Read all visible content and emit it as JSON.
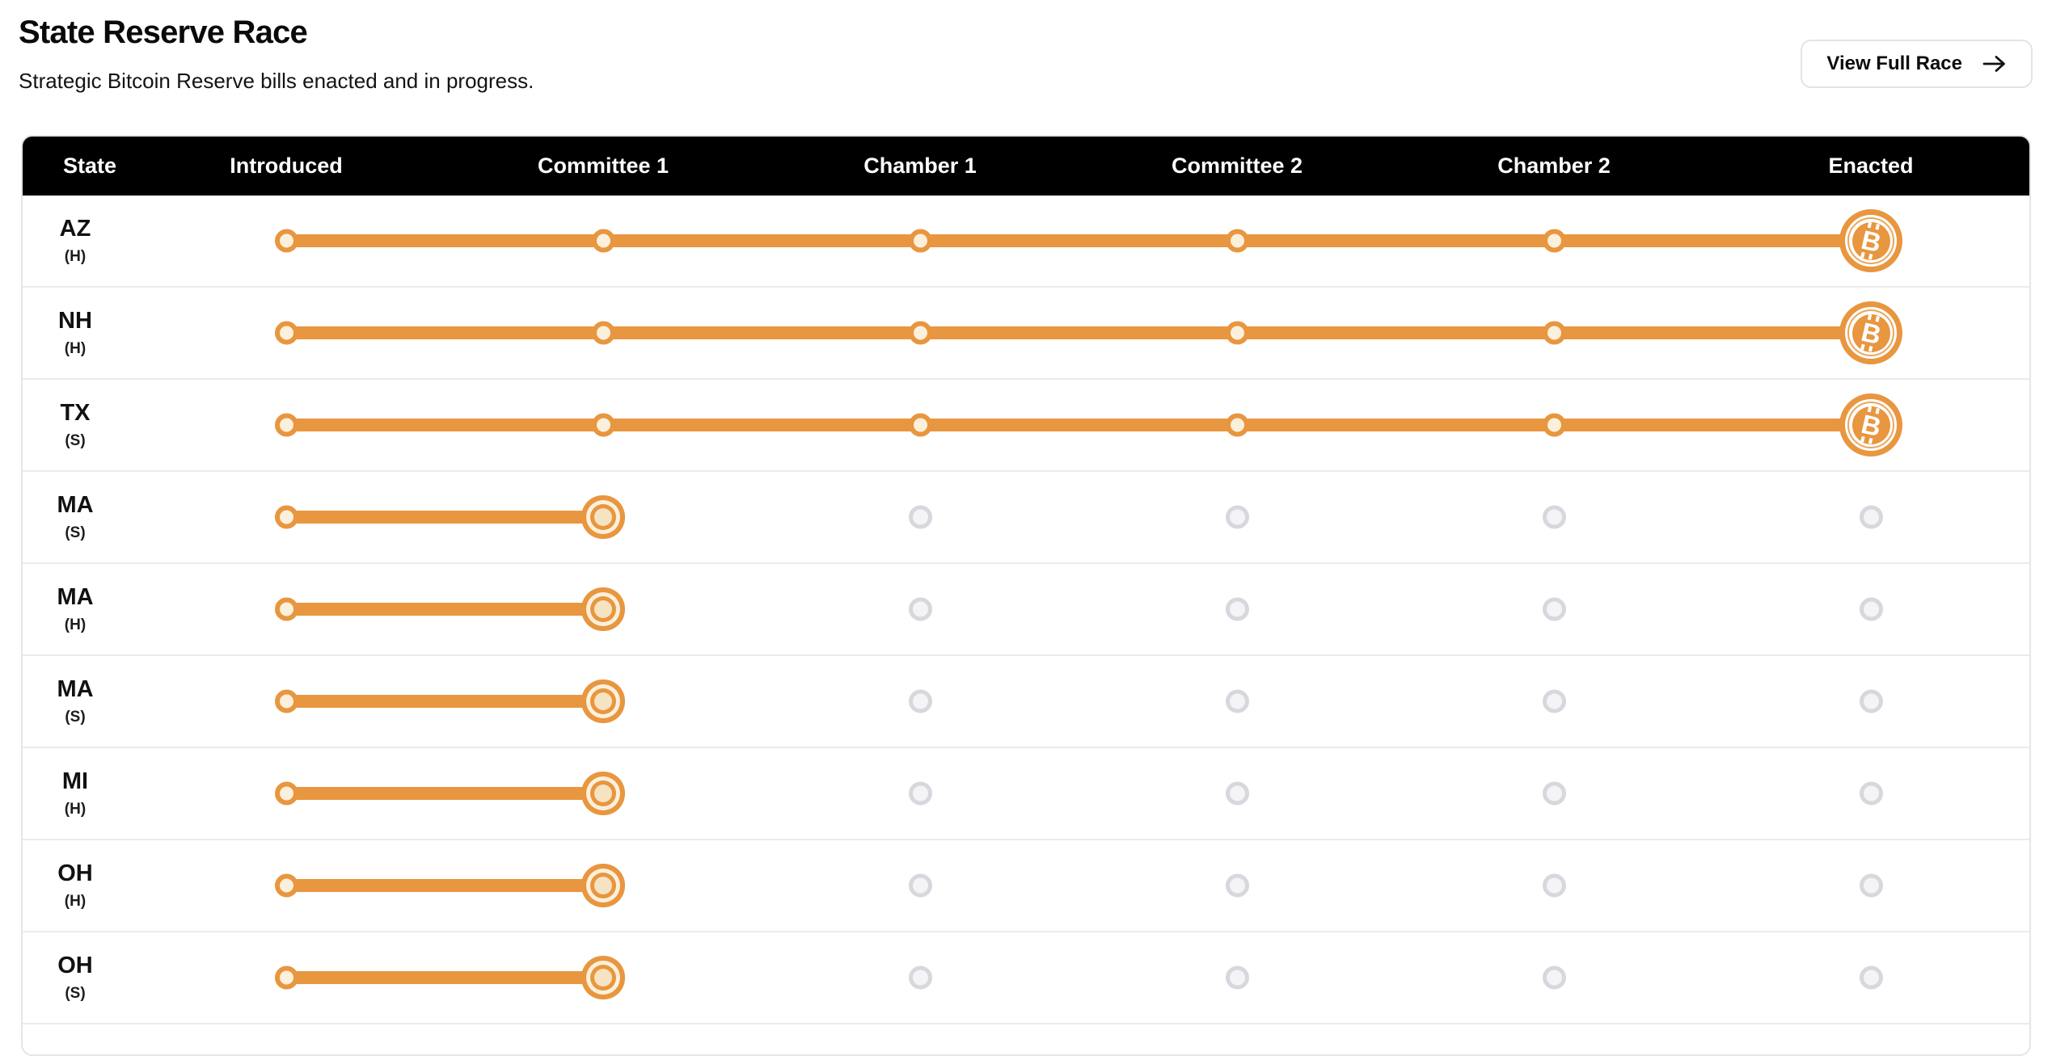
{
  "page": {
    "title": "State Reserve Race",
    "subtitle": "Strategic Bitcoin Reserve bills enacted and in progress.",
    "button_label": "View Full Race",
    "button_icon": "arrow-right-icon"
  },
  "table": {
    "columns": [
      "State",
      "Introduced",
      "Committee 1",
      "Chamber 1",
      "Committee 2",
      "Chamber 2",
      "Enacted"
    ],
    "enacted_icon": "bitcoin-icon",
    "rows": [
      {
        "state": "AZ",
        "chamber": "(H)",
        "current_stage": "Enacted",
        "stages_reached": 6,
        "enacted": true
      },
      {
        "state": "NH",
        "chamber": "(H)",
        "current_stage": "Enacted",
        "stages_reached": 6,
        "enacted": true
      },
      {
        "state": "TX",
        "chamber": "(S)",
        "current_stage": "Enacted",
        "stages_reached": 6,
        "enacted": true
      },
      {
        "state": "MA",
        "chamber": "(S)",
        "current_stage": "Committee 1",
        "stages_reached": 2,
        "enacted": false
      },
      {
        "state": "MA",
        "chamber": "(H)",
        "current_stage": "Committee 1",
        "stages_reached": 2,
        "enacted": false
      },
      {
        "state": "MA",
        "chamber": "(S)",
        "current_stage": "Committee 1",
        "stages_reached": 2,
        "enacted": false
      },
      {
        "state": "MI",
        "chamber": "(H)",
        "current_stage": "Committee 1",
        "stages_reached": 2,
        "enacted": false
      },
      {
        "state": "OH",
        "chamber": "(H)",
        "current_stage": "Committee 1",
        "stages_reached": 2,
        "enacted": false
      },
      {
        "state": "OH",
        "chamber": "(S)",
        "current_stage": "Committee 1",
        "stages_reached": 2,
        "enacted": false
      }
    ],
    "colors": {
      "accent_orange": "#e8963f",
      "dot_fill_cream": "#fbf0db",
      "bullseye_center": "#f6e3c2",
      "pending_ring": "#d7d7de",
      "pending_fill": "#f4f4f6",
      "header_bg": "#000000",
      "header_text": "#ffffff",
      "row_divider": "#ebebeb"
    }
  }
}
